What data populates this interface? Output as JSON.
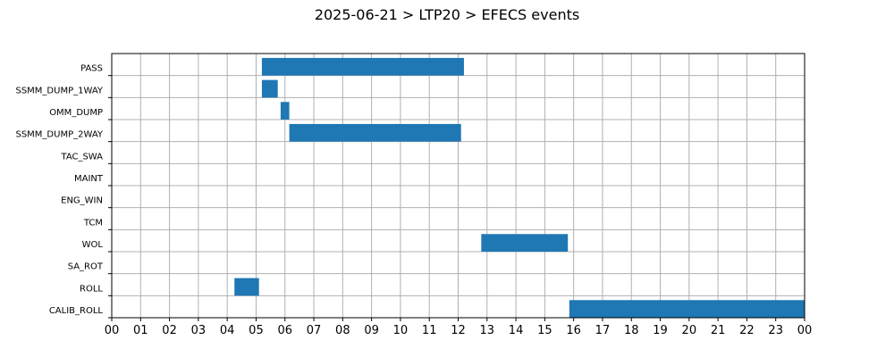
{
  "chart_data": {
    "type": "bar",
    "orientation": "horizontal-timeline",
    "title": "2025-06-21 > LTP20 > EFECS events",
    "xlabel": "",
    "ylabel": "",
    "categories": [
      "PASS",
      "SSMM_DUMP_1WAY",
      "OMM_DUMP",
      "SSMM_DUMP_2WAY",
      "TAC_SWA",
      "MAINT",
      "ENG_WIN",
      "TCM",
      "WOL",
      "SA_ROT",
      "ROLL",
      "CALIB_ROLL"
    ],
    "x_tick_labels": [
      "00",
      "01",
      "02",
      "03",
      "04",
      "05",
      "06",
      "07",
      "08",
      "09",
      "10",
      "11",
      "12",
      "13",
      "14",
      "15",
      "16",
      "17",
      "18",
      "19",
      "20",
      "21",
      "22",
      "23",
      "00"
    ],
    "xlim_hours": [
      0,
      24
    ],
    "grid": true,
    "bar_color": "#1f77b4",
    "events": [
      {
        "category": "PASS",
        "start_hour": 5.2,
        "end_hour": 12.2
      },
      {
        "category": "SSMM_DUMP_1WAY",
        "start_hour": 5.2,
        "end_hour": 5.75
      },
      {
        "category": "OMM_DUMP",
        "start_hour": 5.85,
        "end_hour": 6.15
      },
      {
        "category": "SSMM_DUMP_2WAY",
        "start_hour": 6.15,
        "end_hour": 12.1
      },
      {
        "category": "WOL",
        "start_hour": 12.8,
        "end_hour": 15.8
      },
      {
        "category": "ROLL",
        "start_hour": 4.25,
        "end_hour": 5.1
      },
      {
        "category": "CALIB_ROLL",
        "start_hour": 15.85,
        "end_hour": 24.0
      }
    ]
  }
}
